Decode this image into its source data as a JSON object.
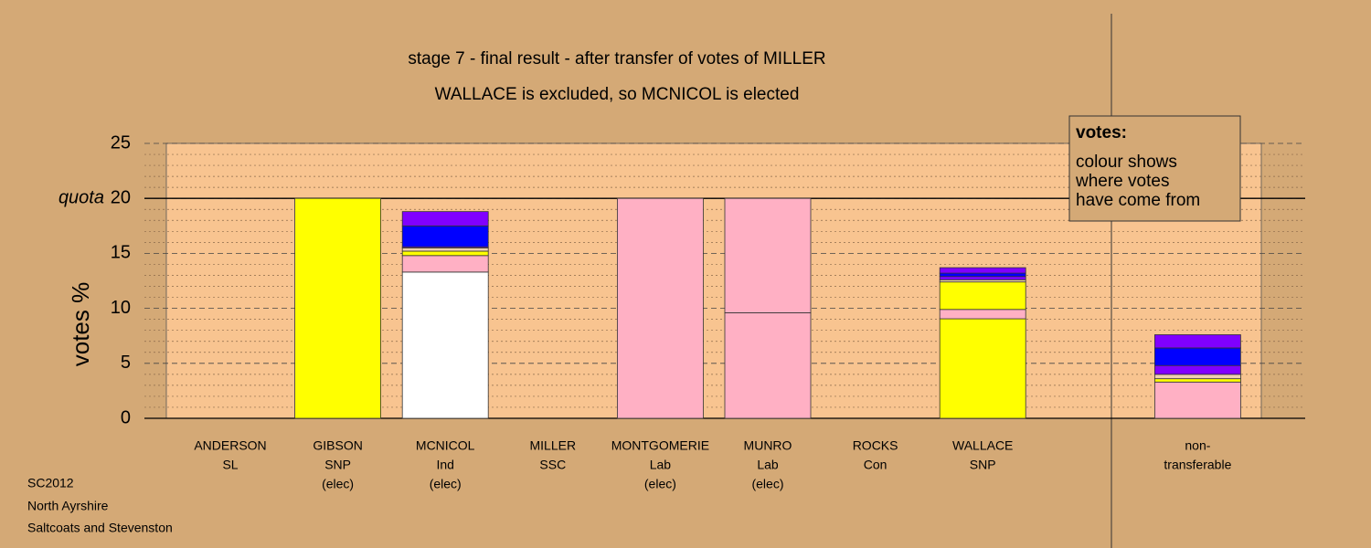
{
  "chart_data": {
    "type": "stacked_bar",
    "title": "stage 7 - final result - after transfer of votes of MILLER",
    "subtitle": "WALLACE is excluded, so MCNICOL is elected",
    "y_label": "votes %",
    "quota": {
      "value": 20,
      "label": "quota"
    },
    "categories": [
      [
        "ANDERSON",
        "SL"
      ],
      [
        "GIBSON",
        "SNP",
        "(elec)"
      ],
      [
        "MCNICOL",
        "Ind",
        "(elec)"
      ],
      [
        "MILLER",
        "SSC"
      ],
      [
        "MONTGOMERIE",
        "Lab",
        "(elec)"
      ],
      [
        "MUNRO",
        "Lab",
        "(elec)"
      ],
      [
        "ROCKS",
        "Con"
      ],
      [
        "WALLACE",
        "SNP"
      ],
      null,
      [
        "non-",
        "transferable"
      ]
    ],
    "series": [
      {
        "color": "#ffffff",
        "values": [
          0,
          null,
          13.3,
          0,
          null,
          null,
          0,
          null,
          null,
          null
        ]
      },
      {
        "color": "#ffff00",
        "values": [
          null,
          20,
          null,
          null,
          null,
          null,
          null,
          9.05,
          null,
          null
        ]
      },
      {
        "color": "#ffb0c4",
        "values": [
          null,
          null,
          1.5,
          null,
          20,
          9.6,
          null,
          0.85,
          null,
          3.3
        ]
      },
      {
        "color": "#ffb0c4",
        "values": [
          null,
          null,
          null,
          null,
          null,
          10.4,
          null,
          null,
          null,
          null
        ]
      },
      {
        "color": "#ffff00",
        "values": [
          null,
          null,
          0.4,
          null,
          null,
          null,
          null,
          2.5,
          null,
          0.3
        ]
      },
      {
        "color": "#f0d0b0",
        "values": [
          null,
          null,
          0.3,
          null,
          null,
          null,
          null,
          0.2,
          null,
          0.4
        ]
      },
      {
        "color": "#8000ff",
        "values": [
          null,
          null,
          0.1,
          null,
          null,
          null,
          null,
          0.3,
          null,
          0.8
        ]
      },
      {
        "color": "#0000ff",
        "values": [
          null,
          null,
          1.9,
          null,
          null,
          null,
          null,
          0.3,
          null,
          1.6
        ]
      },
      {
        "color": "#8000ff",
        "values": [
          null,
          null,
          1.3,
          null,
          null,
          null,
          null,
          0.5,
          null,
          1.2
        ]
      }
    ],
    "ylim": [
      0,
      25
    ],
    "yticks": [
      0,
      5,
      10,
      15,
      20,
      25
    ],
    "yminor": [
      1,
      2,
      3,
      4,
      6,
      7,
      8,
      9,
      11,
      12,
      13,
      14,
      16,
      17,
      18,
      19,
      21,
      22,
      23,
      24
    ],
    "legend": {
      "title": "votes:",
      "lines": [
        "colour shows",
        "where votes",
        "have come from"
      ]
    },
    "notes": [
      "SC2012",
      "North Ayrshire",
      "Saltcoats and Stevenston"
    ]
  }
}
